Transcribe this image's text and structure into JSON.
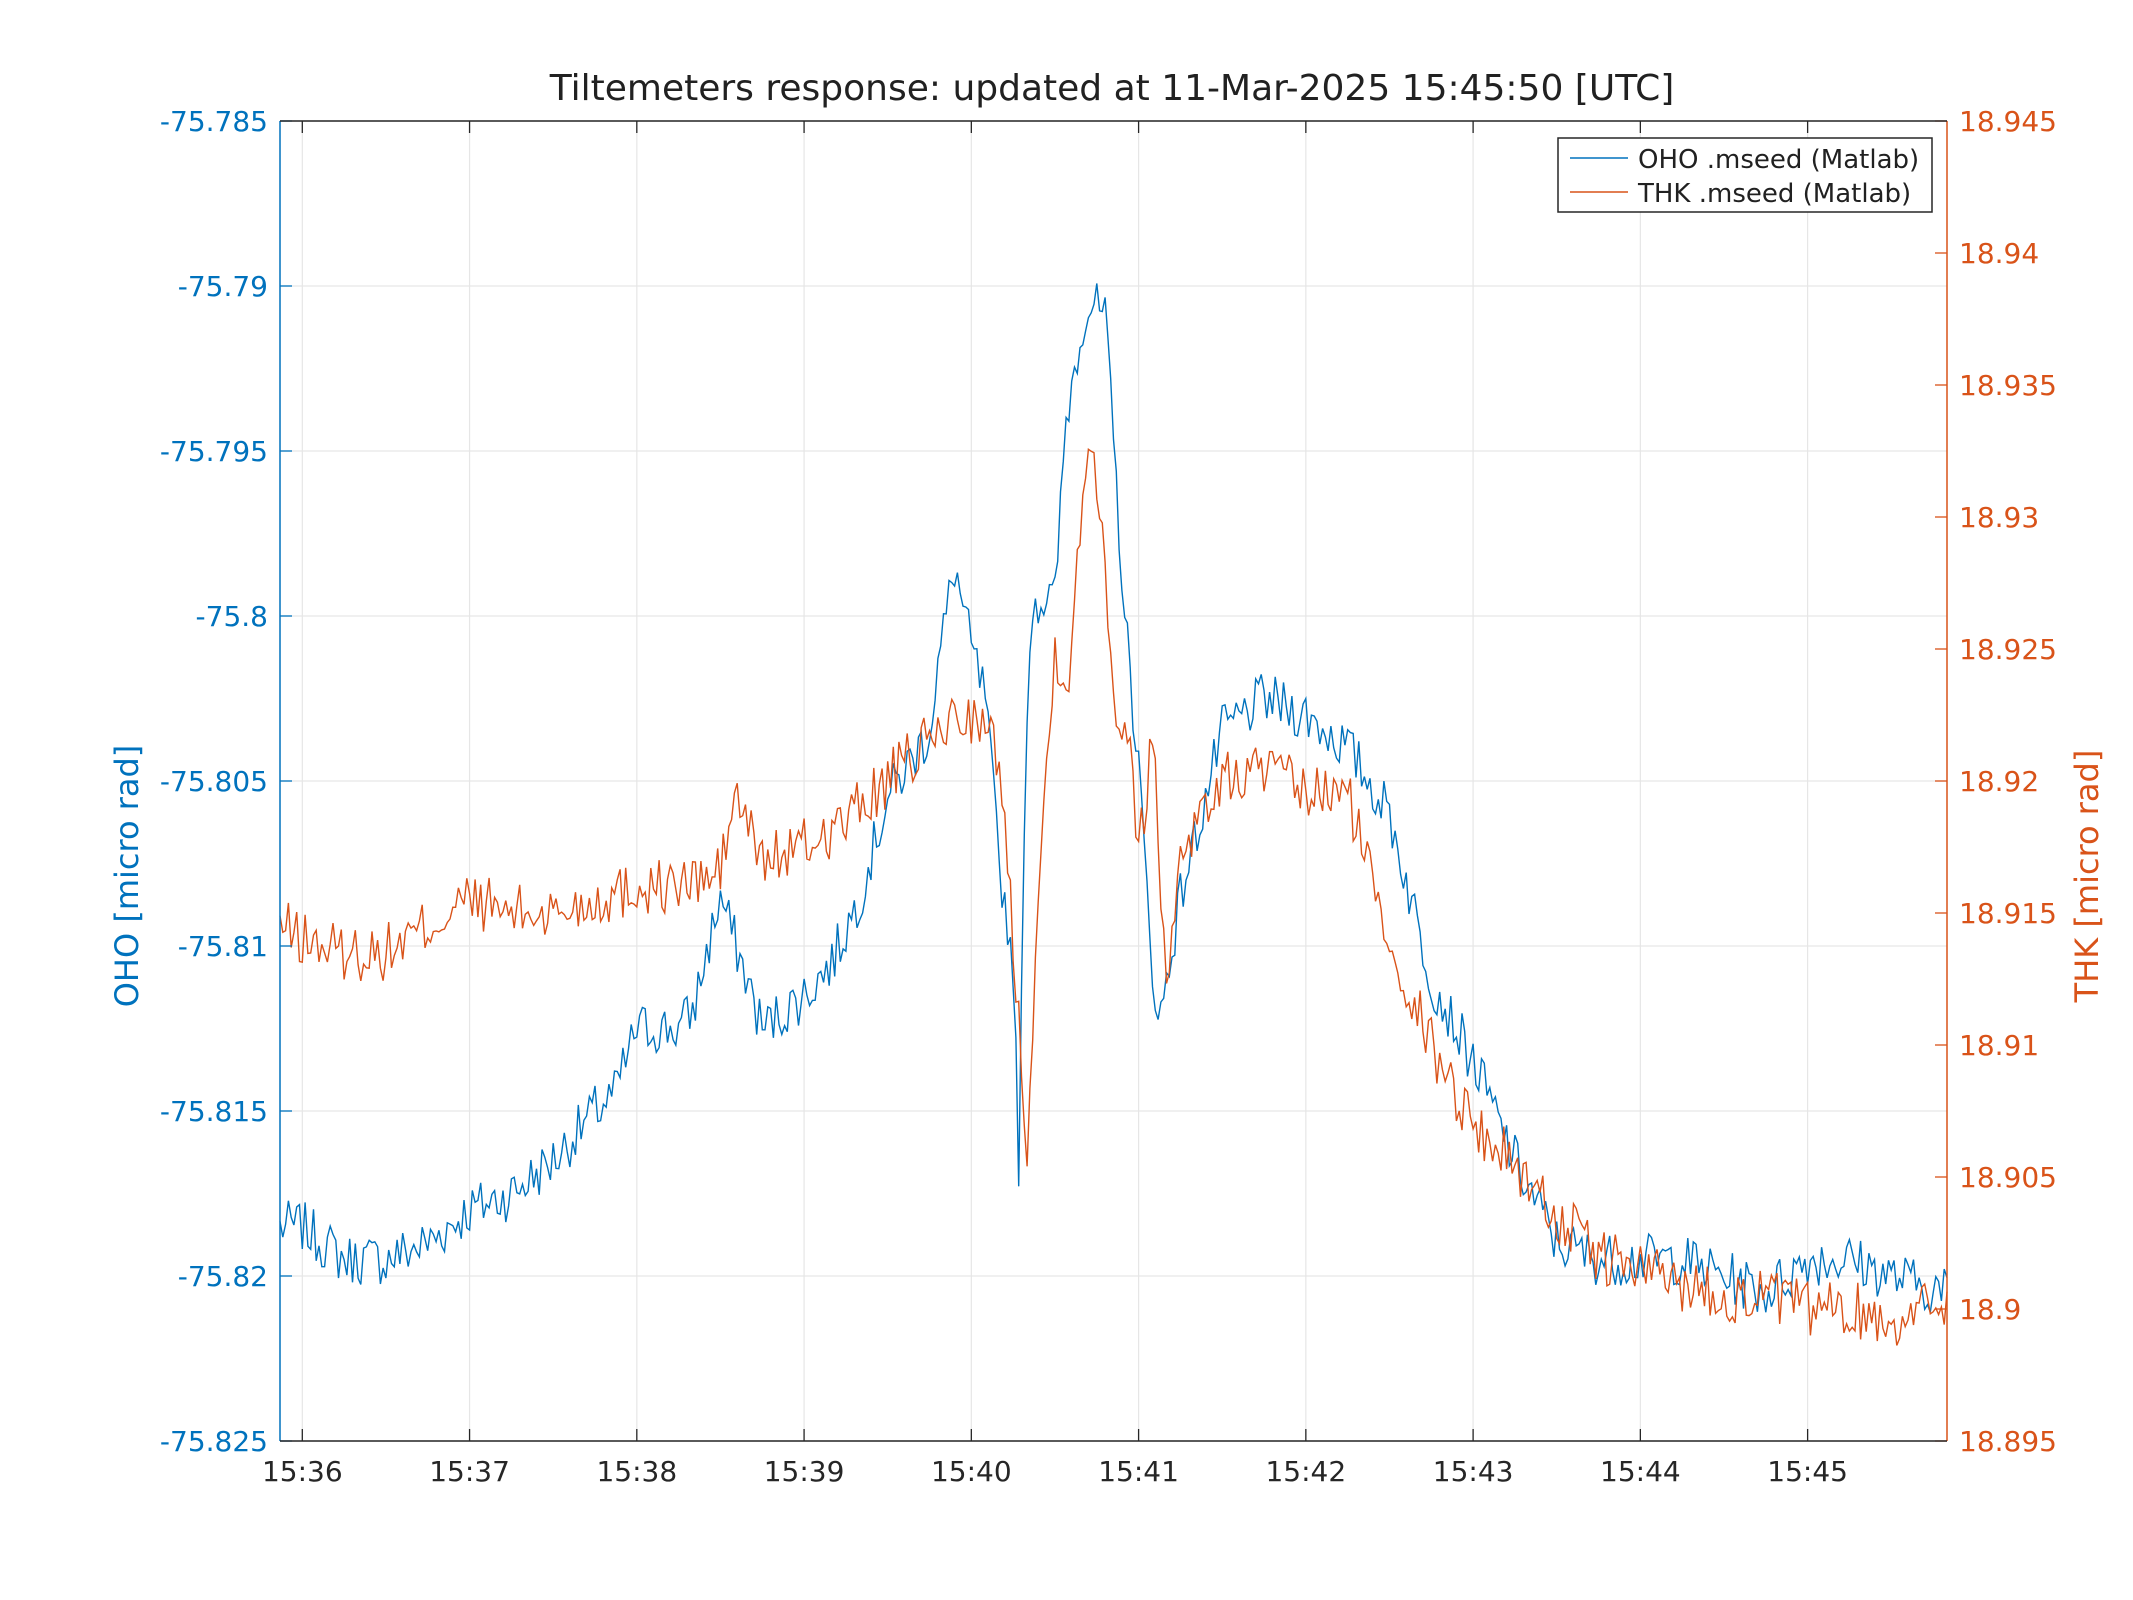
{
  "chart_data": {
    "type": "line",
    "title": "Tiltemeters response: updated at 11-Mar-2025 15:45:50 [UTC]",
    "ylabel_left": "OHO [micro rad]",
    "ylabel_right": "THK [micro rad]",
    "colors": {
      "left": "#0072BD",
      "right": "#D95319",
      "grid": "#E6E6E6",
      "axis": "#262626"
    },
    "xlim": [
      "15:35:52",
      "15:45:50"
    ],
    "xticks": [
      "15:36",
      "15:37",
      "15:38",
      "15:39",
      "15:40",
      "15:41",
      "15:42",
      "15:43",
      "15:44",
      "15:45"
    ],
    "ylim_left": [
      -75.825,
      -75.785
    ],
    "yticks_left": [
      "-75.785",
      "-75.79",
      "-75.795",
      "-75.8",
      "-75.805",
      "-75.81",
      "-75.815",
      "-75.82",
      "-75.825"
    ],
    "ylim_right": [
      18.895,
      18.945
    ],
    "yticks_right": [
      "18.945",
      "18.94",
      "18.935",
      "18.93",
      "18.925",
      "18.92",
      "18.915",
      "18.91",
      "18.905",
      "18.9",
      "18.895"
    ],
    "grid": true,
    "legend_position": "top-right",
    "series": [
      {
        "name": "OHO .mseed (Matlab)",
        "axis": "left",
        "x": [
          "15:35:52",
          "15:36:00",
          "15:36:15",
          "15:36:30",
          "15:36:45",
          "15:37:00",
          "15:37:15",
          "15:37:30",
          "15:37:45",
          "15:37:52",
          "15:38:00",
          "15:38:15",
          "15:38:20",
          "15:38:30",
          "15:38:45",
          "15:39:00",
          "15:39:10",
          "15:39:20",
          "15:39:30",
          "15:39:45",
          "15:39:48",
          "15:39:54",
          "15:40:00",
          "15:40:05",
          "15:40:10",
          "15:40:15",
          "15:40:17",
          "15:40:20",
          "15:40:22",
          "15:40:30",
          "15:40:34",
          "15:40:40",
          "15:40:43",
          "15:40:48",
          "15:40:52",
          "15:40:55",
          "15:41:00",
          "15:41:03",
          "15:41:07",
          "15:41:15",
          "15:41:30",
          "15:41:45",
          "15:42:00",
          "15:42:15",
          "15:42:30",
          "15:42:45",
          "15:43:00",
          "15:43:15",
          "15:43:30",
          "15:43:45",
          "15:44:00",
          "15:44:15",
          "15:44:30",
          "15:44:45",
          "15:45:00",
          "15:45:15",
          "15:45:30",
          "15:45:50"
        ],
        "y": [
          -75.8185,
          -75.8185,
          -75.8195,
          -75.8195,
          -75.819,
          -75.818,
          -75.8175,
          -75.8165,
          -75.815,
          -75.8145,
          -75.8125,
          -75.8125,
          -75.812,
          -75.8085,
          -75.8125,
          -75.8115,
          -75.8105,
          -75.8085,
          -75.8055,
          -75.8035,
          -75.8015,
          -75.7985,
          -75.801,
          -75.8025,
          -75.8075,
          -75.8105,
          -75.8165,
          -75.8025,
          -75.7995,
          -75.7995,
          -75.794,
          -75.791,
          -75.7905,
          -75.791,
          -75.796,
          -75.8,
          -75.8045,
          -75.8085,
          -75.8125,
          -75.8085,
          -75.8035,
          -75.8025,
          -75.803,
          -75.804,
          -75.806,
          -75.811,
          -75.8135,
          -75.8165,
          -75.819,
          -75.8195,
          -75.8195,
          -75.8195,
          -75.82,
          -75.8205,
          -75.8195,
          -75.8195,
          -75.82,
          -75.8205
        ]
      },
      {
        "name": "THK .mseed (Matlab)",
        "axis": "right",
        "x": [
          "15:35:52",
          "15:36:00",
          "15:36:15",
          "15:36:30",
          "15:36:45",
          "15:37:00",
          "15:37:15",
          "15:37:30",
          "15:37:45",
          "15:38:00",
          "15:38:15",
          "15:38:30",
          "15:38:35",
          "15:38:45",
          "15:39:00",
          "15:39:15",
          "15:39:30",
          "15:39:45",
          "15:39:55",
          "15:40:00",
          "15:40:10",
          "15:40:15",
          "15:40:20",
          "15:40:25",
          "15:40:30",
          "15:40:35",
          "15:40:40",
          "15:40:43",
          "15:40:47",
          "15:40:52",
          "15:40:57",
          "15:41:00",
          "15:41:05",
          "15:41:10",
          "15:41:15",
          "15:41:30",
          "15:41:45",
          "15:42:00",
          "15:42:15",
          "15:42:30",
          "15:42:45",
          "15:43:00",
          "15:43:15",
          "15:43:30",
          "15:43:45",
          "15:44:00",
          "15:44:15",
          "15:44:30",
          "15:44:45",
          "15:45:00",
          "15:45:15",
          "15:45:30",
          "15:45:50"
        ],
        "y": [
          18.9145,
          18.914,
          18.9135,
          18.9135,
          18.9145,
          18.9155,
          18.915,
          18.915,
          18.9155,
          18.916,
          18.916,
          18.9165,
          18.9195,
          18.917,
          18.9175,
          18.9185,
          18.92,
          18.9215,
          18.9225,
          18.9225,
          18.921,
          18.914,
          18.9065,
          18.9175,
          18.925,
          18.924,
          18.9305,
          18.9335,
          18.9295,
          18.9225,
          18.922,
          18.917,
          18.922,
          18.912,
          18.9175,
          18.92,
          18.9205,
          18.9195,
          18.9195,
          18.914,
          18.91,
          18.907,
          18.9055,
          18.9035,
          18.902,
          18.9015,
          18.901,
          18.9005,
          18.9005,
          18.9,
          18.9,
          18.8995,
          18.9005
        ]
      }
    ]
  }
}
